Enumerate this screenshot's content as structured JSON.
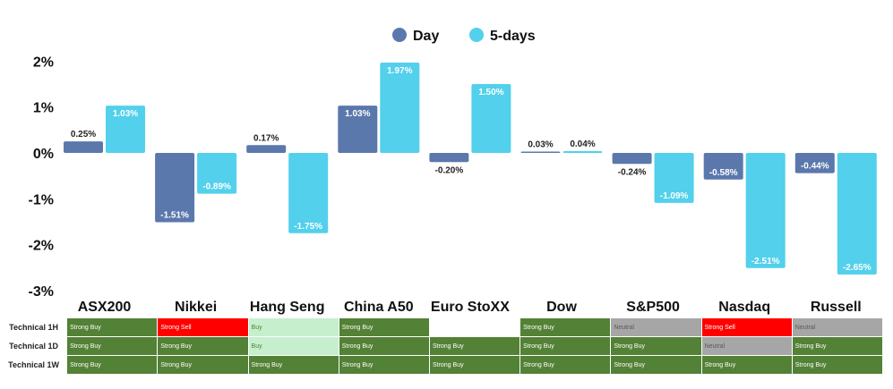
{
  "legend": [
    {
      "label": "Day",
      "color": "#5b78ad"
    },
    {
      "label": "5-days",
      "color": "#52d0ec"
    }
  ],
  "chart_data": {
    "type": "bar",
    "categories": [
      "ASX200",
      "Nikkei",
      "Hang Seng",
      "China A50",
      "Euro StoXX",
      "Dow",
      "S&P500",
      "Nasdaq",
      "Russell"
    ],
    "series": [
      {
        "name": "Day",
        "values": [
          0.25,
          -1.51,
          0.17,
          1.03,
          -0.2,
          0.03,
          -0.24,
          -0.58,
          -0.44
        ],
        "labels": [
          "0.25%",
          "-1.51%",
          "0.17%",
          "1.03%",
          "-0.20%",
          "0.03%",
          "-0.24%",
          "-0.58%",
          "-0.44%"
        ]
      },
      {
        "name": "5-days",
        "values": [
          1.03,
          -0.89,
          -1.75,
          1.97,
          1.5,
          0.04,
          -1.09,
          -2.51,
          -2.65
        ],
        "labels": [
          "1.03%",
          "-0.89%",
          "-1.75%",
          "1.97%",
          "1.50%",
          "0.04%",
          "-1.09%",
          "-2.51%",
          "-2.65%"
        ]
      }
    ],
    "yticks": [
      2,
      1,
      0,
      -1,
      -2,
      -3
    ],
    "ytick_labels": [
      "2%",
      "1%",
      "0%",
      "-1%",
      "-2%",
      "-3%"
    ],
    "ylim": [
      -3,
      2
    ],
    "grid": false,
    "legend_position": "top-center"
  },
  "technical_table": {
    "rows": [
      {
        "label": "Technical 1H",
        "cells": [
          "Strong Buy",
          "Strong Sell",
          "Buy",
          "Strong Buy",
          "",
          "Strong Buy",
          "Neutral",
          "Strong Sell",
          "Neutral"
        ]
      },
      {
        "label": "Technical 1D",
        "cells": [
          "Strong Buy",
          "Strong Buy",
          "Buy",
          "Strong Buy",
          "Strong Buy",
          "Strong Buy",
          "Strong Buy",
          "Neutral",
          "Strong Buy"
        ]
      },
      {
        "label": "Technical 1W",
        "cells": [
          "Strong Buy",
          "Strong Buy",
          "Strong Buy",
          "Strong Buy",
          "Strong Buy",
          "Strong Buy",
          "Strong Buy",
          "Strong Buy",
          "Strong Buy"
        ]
      }
    ],
    "colors": {
      "Strong Buy": {
        "bg": "#538135",
        "fg": "#ffffff"
      },
      "Buy": {
        "bg": "#c6efce",
        "fg": "#548235"
      },
      "Strong Sell": {
        "bg": "#ff0000",
        "fg": "#ffffff"
      },
      "Neutral": {
        "bg": "#a6a6a6",
        "fg": "#595959"
      },
      "": {
        "bg": "#ffffff",
        "fg": "#000000"
      }
    }
  }
}
